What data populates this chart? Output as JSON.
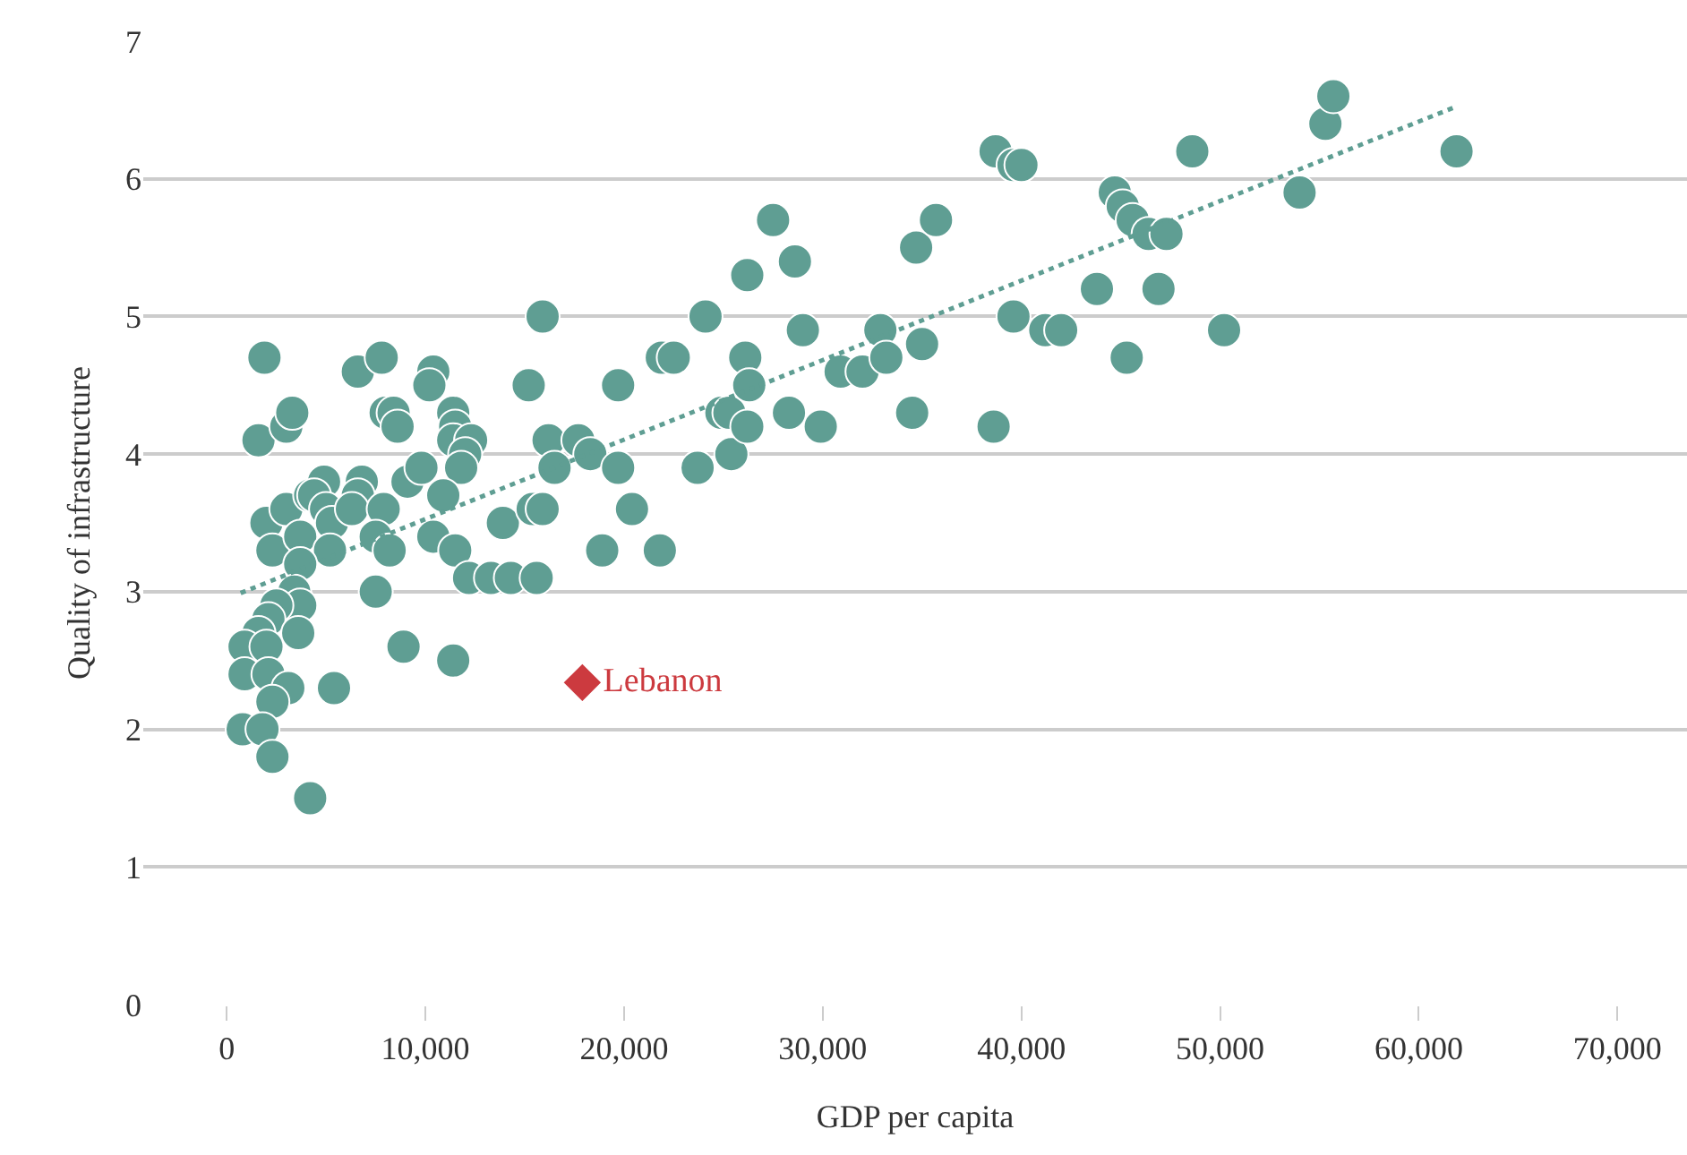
{
  "chart_data": {
    "type": "scatter",
    "xlabel": "GDP per capita",
    "ylabel": "Quality of infrastructure",
    "xlim": [
      -4200,
      73500
    ],
    "ylim": [
      0,
      7
    ],
    "xticks": [
      {
        "value": 0,
        "label": "0"
      },
      {
        "value": 10000,
        "label": "10,000"
      },
      {
        "value": 20000,
        "label": "20,000"
      },
      {
        "value": 30000,
        "label": "30,000"
      },
      {
        "value": 40000,
        "label": "40,000"
      },
      {
        "value": 50000,
        "label": "50,000"
      },
      {
        "value": 60000,
        "label": "60,000"
      },
      {
        "value": 70000,
        "label": "70,000"
      }
    ],
    "yticks": [
      0,
      1,
      2,
      3,
      4,
      5,
      6,
      7
    ],
    "grid": "y",
    "legend": false,
    "series": [
      {
        "marker": "circle",
        "color": "#5f9e93",
        "x": [
          1900,
          1600,
          3000,
          3300,
          2000,
          2300,
          3000,
          3700,
          4200,
          4900,
          4400,
          5000,
          5300,
          5200,
          3700,
          3400,
          3700,
          2500,
          2100,
          1600,
          900,
          2000,
          900,
          2100,
          3100,
          2300,
          800,
          1800,
          2300,
          4200,
          5400,
          3600,
          6600,
          6800,
          6600,
          6300,
          7800,
          8000,
          8400,
          8600,
          7900,
          7500,
          8200,
          7500,
          9100,
          9800,
          8900,
          10400,
          10200,
          11400,
          11500,
          11400,
          12300,
          12000,
          11800,
          10900,
          10400,
          11500,
          12200,
          13300,
          14300,
          11400,
          13900,
          15200,
          15900,
          16200,
          16500,
          15400,
          15900,
          15600,
          17700,
          18300,
          19700,
          19700,
          20400,
          18900,
          21800,
          21900,
          22500,
          24100,
          23700,
          24900,
          25300,
          25400,
          26200,
          26200,
          26100,
          26300,
          27500,
          28600,
          29000,
          28300,
          29900,
          30900,
          32000,
          32900,
          33200,
          34700,
          35700,
          35000,
          34500,
          38700,
          39600,
          40000,
          39600,
          38600,
          41200,
          42000,
          43800,
          44700,
          45100,
          45600,
          46400,
          47300,
          46900,
          45300,
          50200,
          48600,
          54000,
          55300,
          55700,
          61900
        ],
        "values": [
          4.7,
          4.1,
          4.2,
          4.3,
          3.5,
          3.3,
          3.6,
          3.4,
          3.7,
          3.8,
          3.7,
          3.6,
          3.5,
          3.3,
          3.2,
          3.0,
          2.9,
          2.9,
          2.8,
          2.7,
          2.6,
          2.6,
          2.4,
          2.4,
          2.3,
          2.2,
          2.0,
          2.0,
          1.8,
          1.5,
          2.3,
          2.7,
          4.6,
          3.8,
          3.7,
          3.6,
          4.7,
          4.3,
          4.3,
          4.2,
          3.6,
          3.4,
          3.3,
          3.0,
          3.8,
          3.9,
          2.6,
          4.6,
          4.5,
          4.3,
          4.2,
          4.1,
          4.1,
          4.0,
          3.9,
          3.7,
          3.4,
          3.3,
          3.1,
          3.1,
          3.1,
          2.5,
          3.5,
          4.5,
          5.0,
          4.1,
          3.9,
          3.6,
          3.6,
          3.1,
          4.1,
          4.0,
          4.5,
          3.9,
          3.6,
          3.3,
          3.3,
          4.7,
          4.7,
          5.0,
          3.9,
          4.3,
          4.3,
          4.0,
          4.2,
          5.3,
          4.7,
          4.5,
          5.7,
          5.4,
          4.9,
          4.3,
          4.2,
          4.6,
          4.6,
          4.9,
          4.7,
          5.5,
          5.7,
          4.8,
          4.3,
          6.2,
          6.1,
          6.1,
          5.0,
          4.2,
          4.9,
          4.9,
          5.2,
          5.9,
          5.8,
          5.7,
          5.6,
          5.6,
          5.2,
          4.7,
          4.9,
          6.2,
          5.9,
          6.4,
          6.6,
          6.2
        ]
      },
      {
        "type": "line",
        "marker": "none",
        "line_style": "dotted",
        "color": "#5f9e93",
        "x": [
          700,
          61800
        ],
        "values": [
          2.99,
          6.52
        ]
      },
      {
        "type": "scatter",
        "marker": "diamond",
        "name": "Lebanon",
        "color": "#cc3a3f",
        "x": [
          17900
        ],
        "values": [
          2.34
        ]
      }
    ]
  }
}
